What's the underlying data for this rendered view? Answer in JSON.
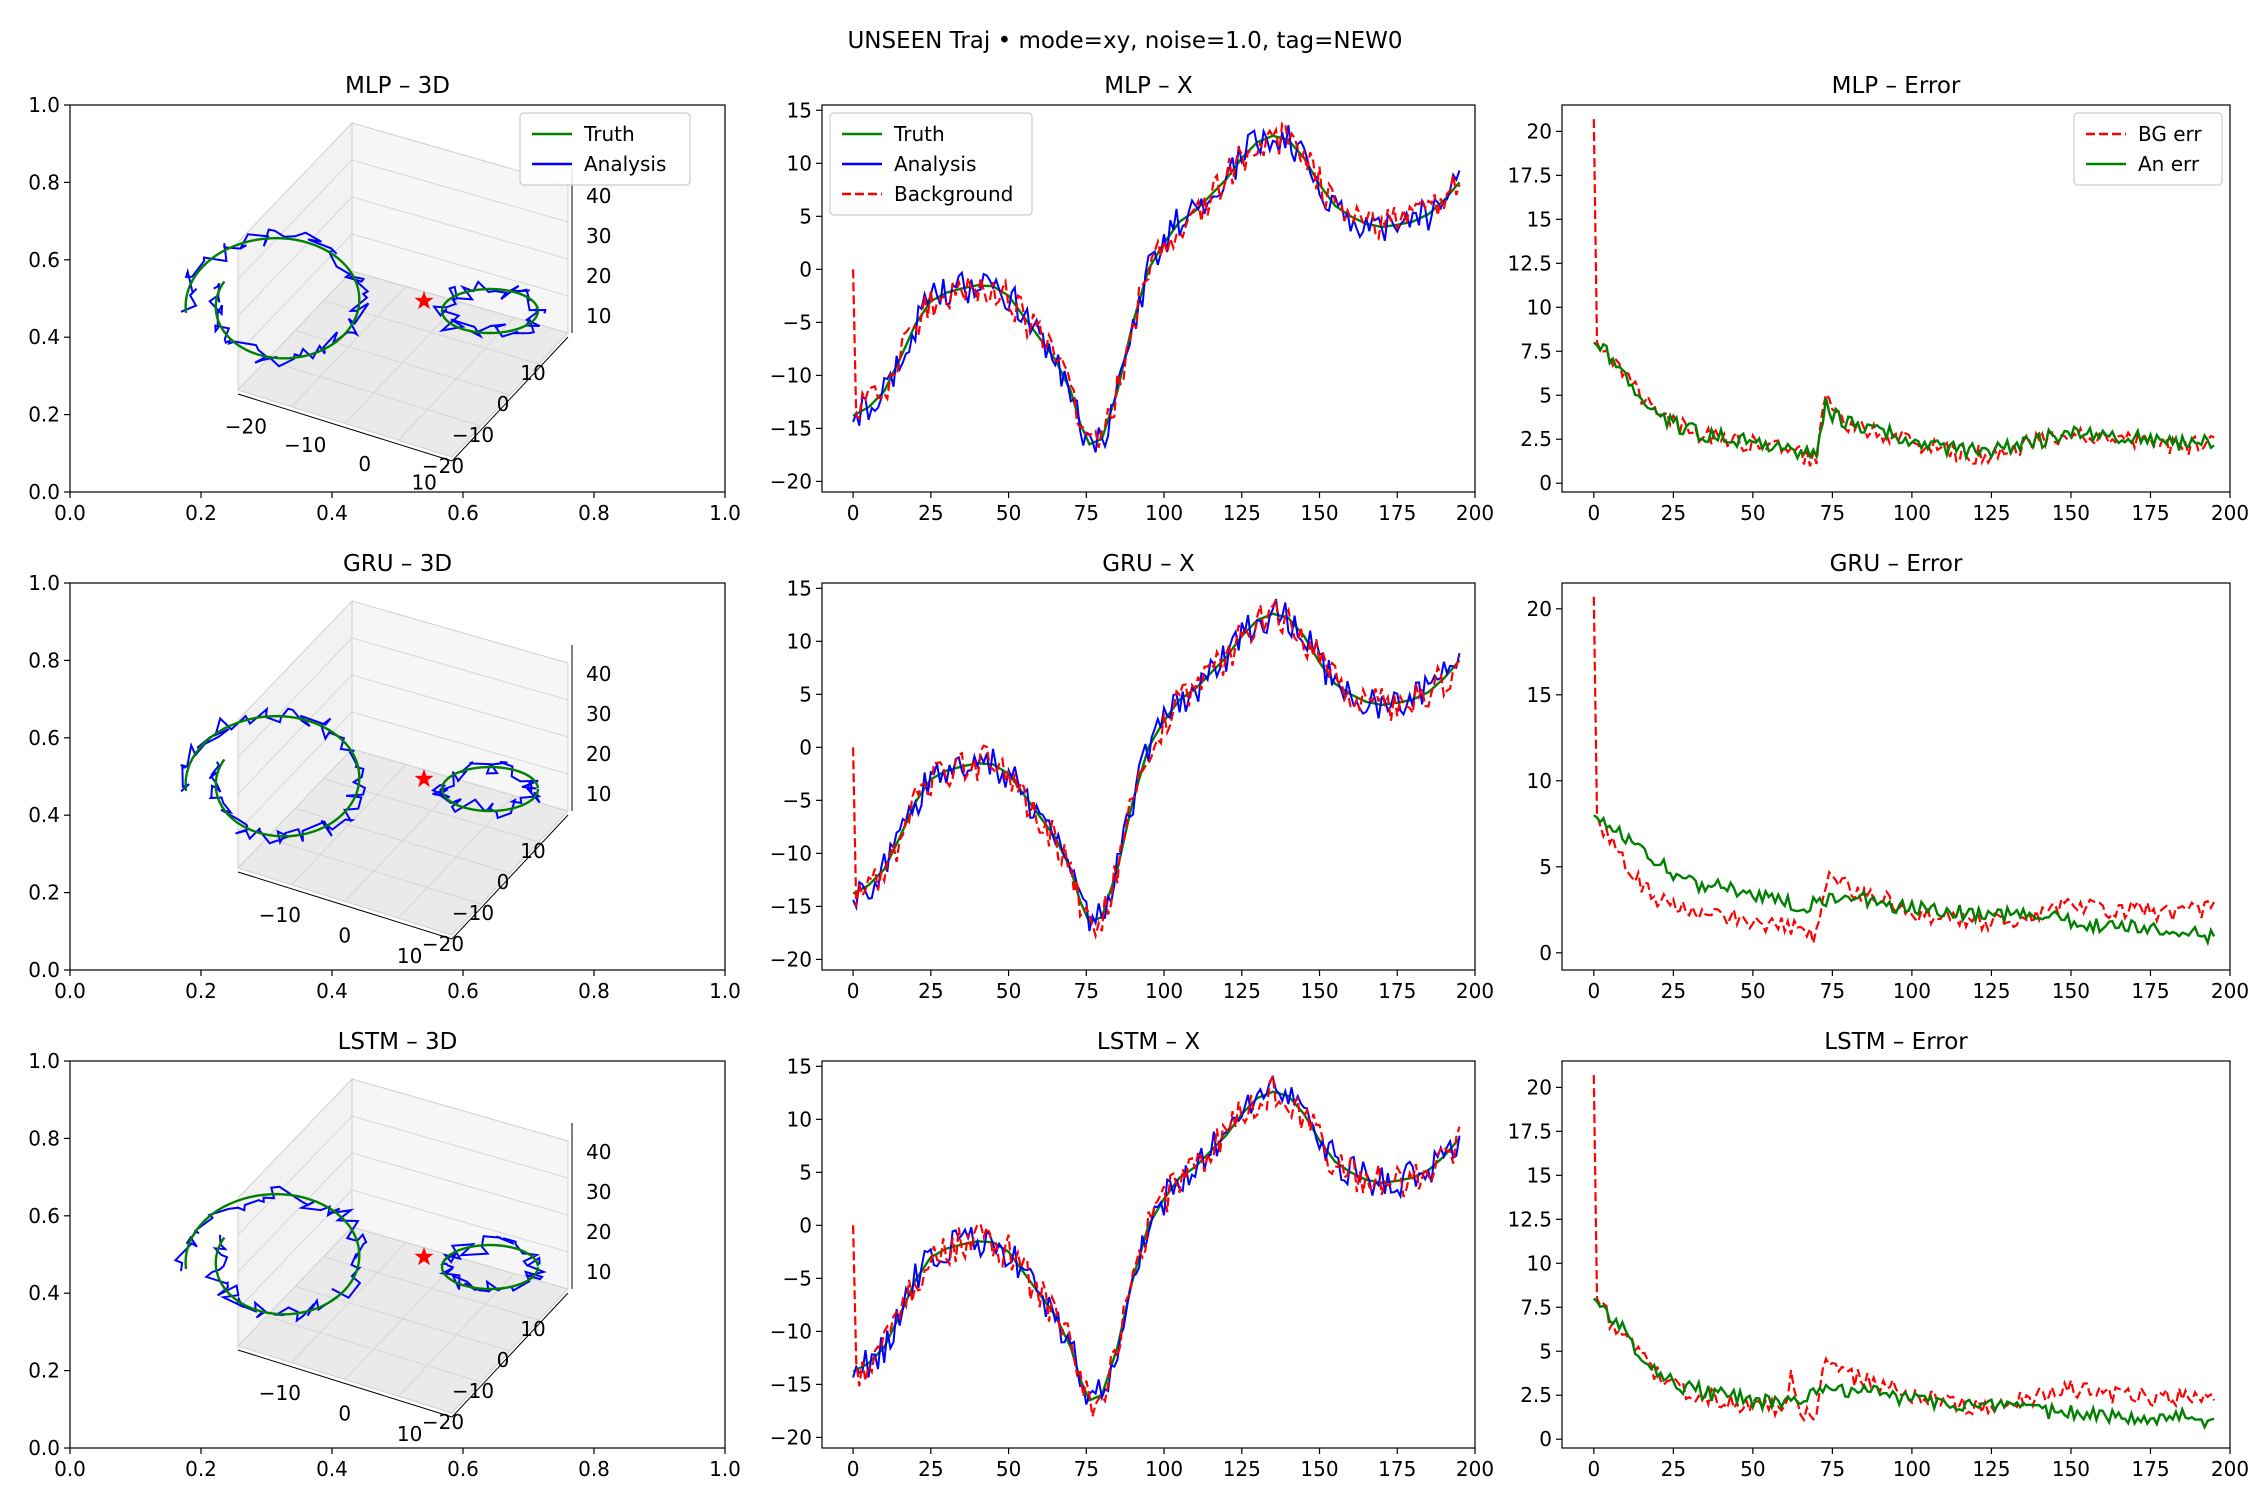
{
  "suptitle": "UNSEEN Traj • mode=xy, noise=1.0, tag=NEW0",
  "colors": {
    "truth": "#008000",
    "analysis": "#0000ff",
    "background": "#ff0000",
    "star": "#ff0000"
  },
  "models": [
    {
      "name": "MLP",
      "titles": {
        "d3": "MLP – 3D",
        "x": "MLP – X",
        "err": "MLP – Error"
      },
      "z_ticks": [
        "10",
        "20",
        "30",
        "40"
      ],
      "y_ticks": [
        "10",
        "0",
        "−10",
        "−20"
      ],
      "x_ticks": [
        "−20",
        "−10",
        "0",
        "10"
      ]
    },
    {
      "name": "GRU",
      "titles": {
        "d3": "GRU – 3D",
        "x": "GRU – X",
        "err": "GRU – Error"
      },
      "z_ticks": [
        "10",
        "20",
        "30",
        "40"
      ],
      "y_ticks": [
        "10",
        "0",
        "−10",
        "−20"
      ],
      "x_ticks": [
        "−10",
        "0",
        "10"
      ]
    },
    {
      "name": "LSTM",
      "titles": {
        "d3": "LSTM – 3D",
        "x": "LSTM – X",
        "err": "LSTM – Error"
      },
      "z_ticks": [
        "10",
        "20",
        "30",
        "40"
      ],
      "y_ticks": [
        "10",
        "0",
        "−10",
        "−20"
      ],
      "x_ticks": [
        "−10",
        "0",
        "10"
      ]
    }
  ],
  "chart_data": [
    {
      "type": "line",
      "panel": "MLP – 3D",
      "legend": {
        "placement": "upper right",
        "entries": [
          "Truth",
          "Analysis"
        ]
      },
      "xlim": [
        0.0,
        1.0
      ],
      "ylim": [
        0.0,
        1.0
      ],
      "xticks": [
        "0.0",
        "0.2",
        "0.4",
        "0.6",
        "0.8",
        "1.0"
      ],
      "yticks": [
        "0.0",
        "0.2",
        "0.4",
        "0.6",
        "0.8",
        "1.0"
      ],
      "projection": "3d",
      "axis3d_ticks": {
        "x": [
          "−20",
          "−10",
          "0",
          "10"
        ],
        "y": [
          "10",
          "0",
          "−10",
          "−20"
        ],
        "z": [
          "10",
          "20",
          "30",
          "40"
        ]
      }
    },
    {
      "type": "line",
      "panel": "MLP – X",
      "legend": {
        "placement": "upper left",
        "entries": [
          "Truth",
          "Analysis",
          "Background"
        ]
      },
      "xlim": [
        -10,
        200
      ],
      "ylim": [
        -21,
        15.5
      ],
      "xticks": [
        0,
        25,
        50,
        75,
        100,
        125,
        150,
        175,
        200
      ],
      "yticks": [
        -20,
        -15,
        -10,
        -5,
        0,
        5,
        10,
        15
      ],
      "series": [
        {
          "name": "Truth",
          "style": "solid",
          "x": [
            0,
            5,
            10,
            15,
            20,
            25,
            30,
            35,
            40,
            45,
            50,
            55,
            60,
            65,
            70,
            73,
            76,
            80,
            85,
            90,
            95,
            100,
            105,
            110,
            115,
            120,
            125,
            130,
            135,
            140,
            145,
            150,
            155,
            160,
            165,
            170,
            175,
            180,
            185,
            190,
            195
          ],
          "y": [
            -13.8,
            -13,
            -11.5,
            -8.5,
            -5.2,
            -3,
            -2.2,
            -1.8,
            -1.5,
            -1.6,
            -2.5,
            -4.5,
            -6.5,
            -8.5,
            -11.5,
            -14.5,
            -16.5,
            -16,
            -11.5,
            -5,
            0,
            2.5,
            4.5,
            5.5,
            7,
            8.5,
            10.5,
            12,
            12.6,
            12.2,
            10.5,
            8,
            6,
            5,
            4.3,
            4,
            4.2,
            4.5,
            5.2,
            6.5,
            8.2
          ]
        },
        {
          "name": "Analysis",
          "style": "solid"
        },
        {
          "name": "Background",
          "style": "dashed"
        }
      ]
    },
    {
      "type": "line",
      "panel": "MLP – Error",
      "legend": {
        "placement": "upper right",
        "entries": [
          "BG err",
          "An err"
        ]
      },
      "xlim": [
        -10,
        200
      ],
      "ylim": [
        -0.5,
        21.5
      ],
      "xticks": [
        0,
        25,
        50,
        75,
        100,
        125,
        150,
        175,
        200
      ],
      "yticks": [
        0.0,
        2.5,
        5.0,
        7.5,
        10.0,
        12.5,
        15.0,
        17.5,
        20.0
      ],
      "series": [
        {
          "name": "BG err",
          "style": "dashed",
          "x": [
            0,
            1,
            2,
            5,
            10,
            15,
            20,
            25,
            30,
            40,
            50,
            60,
            65,
            70,
            73,
            75,
            80,
            90,
            100,
            110,
            120,
            130,
            140,
            150,
            160,
            170,
            180,
            190,
            195
          ],
          "y": [
            20.7,
            8.0,
            7.6,
            7.0,
            6.0,
            4.8,
            3.9,
            3.4,
            3.0,
            2.6,
            2.2,
            1.8,
            1.6,
            1.4,
            4.8,
            3.8,
            3.4,
            2.9,
            2.3,
            1.9,
            1.6,
            1.9,
            2.4,
            2.9,
            2.6,
            2.5,
            2.2,
            2.1,
            2.5
          ]
        },
        {
          "name": "An err",
          "style": "solid",
          "x": [
            0,
            5,
            10,
            15,
            20,
            25,
            30,
            40,
            50,
            60,
            65,
            70,
            73,
            75,
            80,
            90,
            100,
            110,
            120,
            130,
            140,
            150,
            160,
            170,
            180,
            190,
            195
          ],
          "y": [
            8.0,
            7.2,
            6.0,
            4.9,
            4.0,
            3.4,
            3.0,
            2.6,
            2.3,
            2.0,
            1.7,
            1.5,
            5.0,
            3.9,
            3.5,
            3.0,
            2.4,
            2.0,
            1.8,
            2.0,
            2.4,
            3.0,
            2.7,
            2.6,
            2.3,
            2.2,
            2.4
          ]
        }
      ]
    },
    {
      "type": "line",
      "panel": "GRU – 3D",
      "xlim": [
        0.0,
        1.0
      ],
      "ylim": [
        0.0,
        1.0
      ],
      "xticks": [
        "0.0",
        "0.2",
        "0.4",
        "0.6",
        "0.8",
        "1.0"
      ],
      "yticks": [
        "0.0",
        "0.2",
        "0.4",
        "0.6",
        "0.8",
        "1.0"
      ],
      "projection": "3d",
      "axis3d_ticks": {
        "x": [
          "−10",
          "0",
          "10"
        ],
        "y": [
          "10",
          "0",
          "−10",
          "−20"
        ],
        "z": [
          "10",
          "20",
          "30",
          "40"
        ]
      }
    },
    {
      "type": "line",
      "panel": "GRU – X",
      "xlim": [
        -10,
        200
      ],
      "ylim": [
        -21,
        15.5
      ],
      "xticks": [
        0,
        25,
        50,
        75,
        100,
        125,
        150,
        175,
        200
      ],
      "yticks": [
        -20,
        -15,
        -10,
        -5,
        0,
        5,
        10,
        15
      ],
      "series": [
        {
          "name": "Truth",
          "style": "solid",
          "x": [
            0,
            5,
            10,
            15,
            20,
            25,
            30,
            35,
            40,
            45,
            50,
            55,
            60,
            65,
            70,
            73,
            76,
            80,
            85,
            90,
            95,
            100,
            105,
            110,
            115,
            120,
            125,
            130,
            135,
            140,
            145,
            150,
            155,
            160,
            165,
            170,
            175,
            180,
            185,
            190,
            195
          ],
          "y": [
            -13.8,
            -13,
            -11.5,
            -8.5,
            -5.2,
            -3,
            -2.2,
            -1.8,
            -1.5,
            -1.6,
            -2.5,
            -4.5,
            -6.5,
            -8.5,
            -11.5,
            -14.5,
            -16.5,
            -16,
            -11.5,
            -5,
            0,
            2.5,
            4.5,
            5.5,
            7,
            8.5,
            10.5,
            12,
            12.6,
            12.2,
            10.5,
            8,
            6,
            5,
            4.3,
            4,
            4.2,
            4.5,
            5.2,
            6.5,
            8.2
          ]
        },
        {
          "name": "Analysis",
          "style": "solid"
        },
        {
          "name": "Background",
          "style": "dashed"
        }
      ]
    },
    {
      "type": "line",
      "panel": "GRU – Error",
      "xlim": [
        -10,
        200
      ],
      "ylim": [
        -1,
        21.5
      ],
      "xticks": [
        0,
        25,
        50,
        75,
        100,
        125,
        150,
        175,
        200
      ],
      "yticks": [
        0,
        5,
        10,
        15,
        20
      ],
      "series": [
        {
          "name": "BG err",
          "style": "dashed",
          "x": [
            0,
            1,
            2,
            5,
            10,
            15,
            20,
            25,
            30,
            40,
            50,
            60,
            65,
            70,
            73,
            75,
            80,
            90,
            100,
            110,
            120,
            130,
            140,
            150,
            160,
            170,
            180,
            190,
            195
          ],
          "y": [
            20.7,
            8.0,
            7.4,
            6.5,
            5.0,
            4.0,
            3.1,
            2.7,
            2.4,
            2.1,
            1.8,
            1.5,
            1.3,
            1.0,
            4.3,
            4.8,
            3.6,
            3.2,
            2.4,
            2.0,
            1.7,
            1.9,
            2.2,
            2.9,
            2.5,
            2.5,
            2.3,
            2.4,
            2.5
          ]
        },
        {
          "name": "An err",
          "style": "solid",
          "x": [
            0,
            5,
            10,
            15,
            20,
            25,
            30,
            40,
            50,
            60,
            65,
            70,
            75,
            80,
            90,
            100,
            110,
            120,
            130,
            140,
            150,
            160,
            170,
            180,
            190,
            195
          ],
          "y": [
            8.0,
            7.3,
            6.6,
            6.0,
            5.3,
            4.6,
            4.1,
            3.8,
            3.4,
            3.1,
            2.6,
            2.9,
            3.2,
            3.3,
            2.9,
            2.6,
            2.4,
            2.3,
            2.2,
            2.1,
            1.9,
            1.6,
            1.5,
            1.4,
            1.0,
            1.0
          ]
        }
      ]
    },
    {
      "type": "line",
      "panel": "LSTM – 3D",
      "xlim": [
        0.0,
        1.0
      ],
      "ylim": [
        0.0,
        1.0
      ],
      "xticks": [
        "0.0",
        "0.2",
        "0.4",
        "0.6",
        "0.8",
        "1.0"
      ],
      "yticks": [
        "0.0",
        "0.2",
        "0.4",
        "0.6",
        "0.8",
        "1.0"
      ],
      "projection": "3d",
      "axis3d_ticks": {
        "x": [
          "−10",
          "0",
          "10"
        ],
        "y": [
          "10",
          "0",
          "−10",
          "−20"
        ],
        "z": [
          "10",
          "20",
          "30",
          "40"
        ]
      }
    },
    {
      "type": "line",
      "panel": "LSTM – X",
      "xlim": [
        -10,
        200
      ],
      "ylim": [
        -21,
        15.5
      ],
      "xticks": [
        0,
        25,
        50,
        75,
        100,
        125,
        150,
        175,
        200
      ],
      "yticks": [
        -20,
        -15,
        -10,
        -5,
        0,
        5,
        10,
        15
      ],
      "series": [
        {
          "name": "Truth",
          "style": "solid",
          "x": [
            0,
            5,
            10,
            15,
            20,
            25,
            30,
            35,
            40,
            45,
            50,
            55,
            60,
            65,
            70,
            73,
            76,
            80,
            85,
            90,
            95,
            100,
            105,
            110,
            115,
            120,
            125,
            130,
            135,
            140,
            145,
            150,
            155,
            160,
            165,
            170,
            175,
            180,
            185,
            190,
            195
          ],
          "y": [
            -13.8,
            -13,
            -11.5,
            -8.5,
            -5.2,
            -3,
            -2.2,
            -1.8,
            -1.5,
            -1.6,
            -2.5,
            -4.5,
            -6.5,
            -8.5,
            -11.5,
            -14.5,
            -16.5,
            -16,
            -11.5,
            -5,
            0,
            2.5,
            4.5,
            5.5,
            7,
            8.5,
            10.5,
            12,
            12.6,
            12.2,
            10.5,
            8,
            6,
            5,
            4.3,
            4,
            4.2,
            4.5,
            5.2,
            6.5,
            8.2
          ]
        },
        {
          "name": "Analysis",
          "style": "solid"
        },
        {
          "name": "Background",
          "style": "dashed"
        }
      ]
    },
    {
      "type": "line",
      "panel": "LSTM – Error",
      "xlim": [
        -10,
        200
      ],
      "ylim": [
        -0.5,
        21.5
      ],
      "xticks": [
        0,
        25,
        50,
        75,
        100,
        125,
        150,
        175,
        200
      ],
      "yticks": [
        0.0,
        2.5,
        5.0,
        7.5,
        10.0,
        12.5,
        15.0,
        17.5,
        20.0
      ],
      "series": [
        {
          "name": "BG err",
          "style": "dashed",
          "x": [
            0,
            1,
            2,
            5,
            10,
            15,
            20,
            25,
            30,
            40,
            50,
            60,
            62,
            65,
            70,
            73,
            75,
            80,
            90,
            100,
            110,
            120,
            130,
            140,
            150,
            160,
            170,
            180,
            190,
            195
          ],
          "y": [
            20.7,
            8.0,
            7.6,
            6.8,
            5.6,
            4.5,
            3.7,
            3.1,
            2.7,
            2.2,
            1.9,
            1.6,
            3.8,
            1.5,
            1.3,
            4.7,
            4.3,
            3.6,
            3.1,
            2.5,
            2.1,
            1.8,
            2.0,
            2.4,
            2.9,
            2.4,
            2.5,
            2.3,
            2.6,
            2.5
          ]
        },
        {
          "name": "An err",
          "style": "solid",
          "x": [
            0,
            5,
            10,
            15,
            20,
            25,
            30,
            40,
            50,
            60,
            65,
            70,
            75,
            80,
            90,
            100,
            110,
            120,
            130,
            140,
            150,
            160,
            170,
            180,
            190,
            195
          ],
          "y": [
            8.0,
            7.1,
            6.0,
            4.8,
            3.9,
            3.2,
            2.9,
            2.5,
            2.2,
            2.0,
            2.4,
            2.5,
            2.9,
            2.8,
            2.6,
            2.3,
            2.1,
            1.9,
            1.7,
            1.6,
            1.5,
            1.4,
            1.3,
            1.3,
            1.2,
            1.0
          ]
        }
      ]
    }
  ]
}
